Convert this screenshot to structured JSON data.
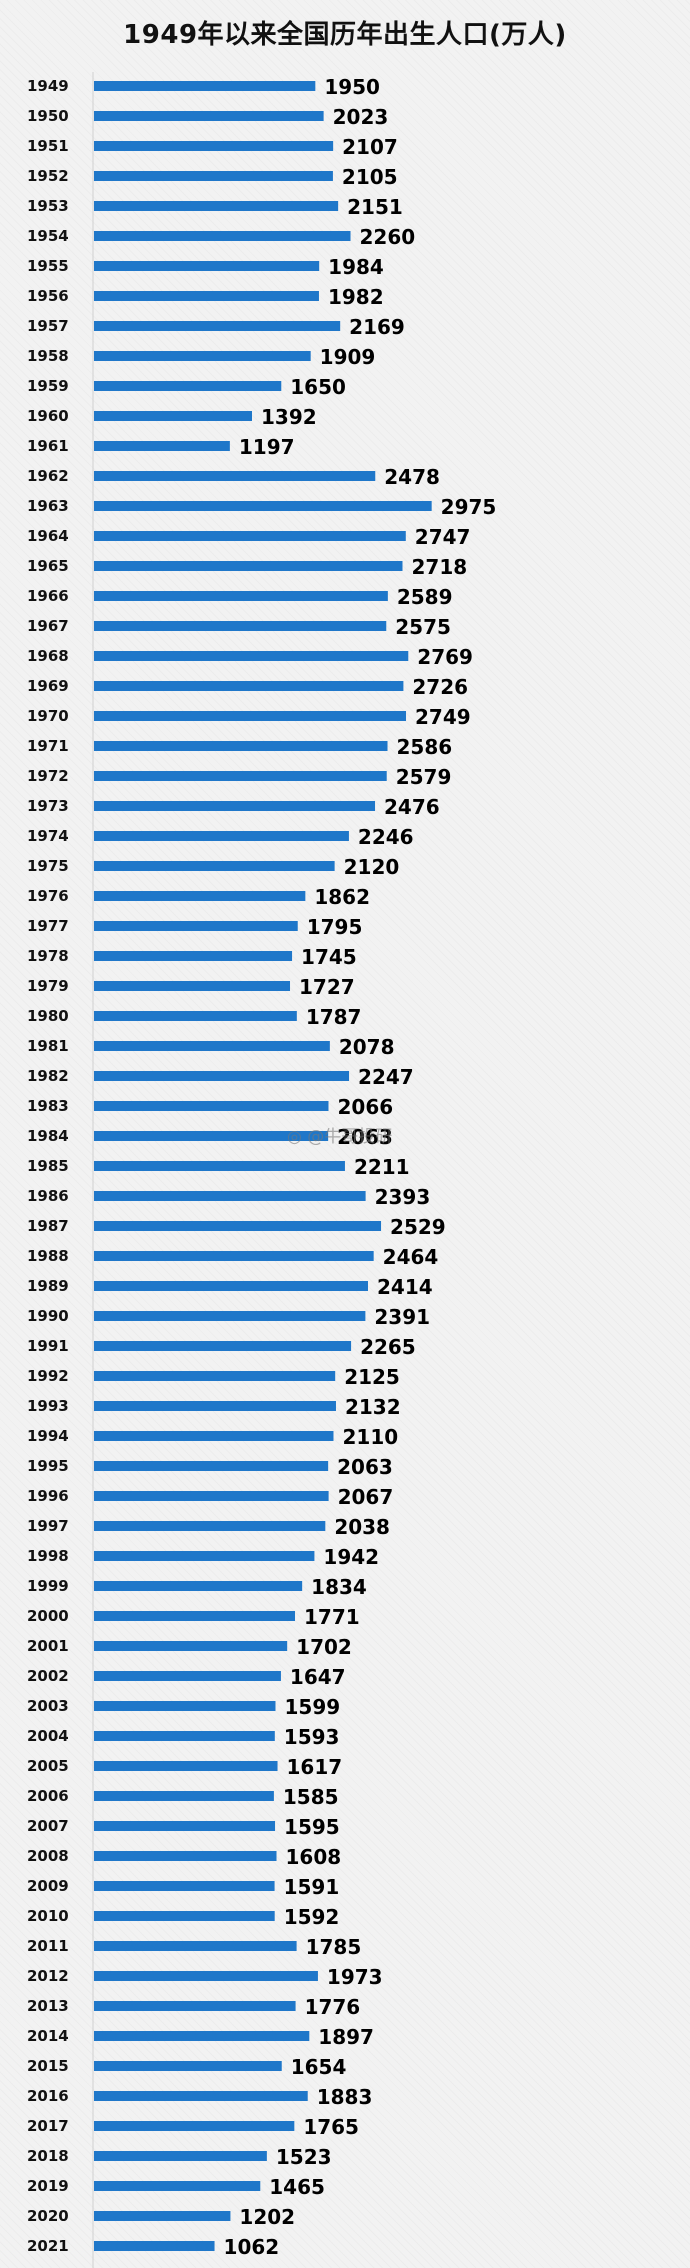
{
  "chart_data": {
    "type": "bar",
    "orientation": "horizontal",
    "title": "1949年以来全国历年出生人口(万人)",
    "bar_color": "#1f77c9",
    "categories": [
      "1949",
      "1950",
      "1951",
      "1952",
      "1953",
      "1954",
      "1955",
      "1956",
      "1957",
      "1958",
      "1959",
      "1960",
      "1961",
      "1962",
      "1963",
      "1964",
      "1965",
      "1966",
      "1967",
      "1968",
      "1969",
      "1970",
      "1971",
      "1972",
      "1973",
      "1974",
      "1975",
      "1976",
      "1977",
      "1978",
      "1979",
      "1980",
      "1981",
      "1982",
      "1983",
      "1984",
      "1985",
      "1986",
      "1987",
      "1988",
      "1989",
      "1990",
      "1991",
      "1992",
      "1993",
      "1994",
      "1995",
      "1996",
      "1997",
      "1998",
      "1999",
      "2000",
      "2001",
      "2002",
      "2003",
      "2004",
      "2005",
      "2006",
      "2007",
      "2008",
      "2009",
      "2010",
      "2011",
      "2012",
      "2013",
      "2014",
      "2015",
      "2016",
      "2017",
      "2018",
      "2019",
      "2020",
      "2021"
    ],
    "values": [
      1950,
      2023,
      2107,
      2105,
      2151,
      2260,
      1984,
      1982,
      2169,
      1909,
      1650,
      1392,
      1197,
      2478,
      2975,
      2747,
      2718,
      2589,
      2575,
      2769,
      2726,
      2749,
      2586,
      2579,
      2476,
      2246,
      2120,
      1862,
      1795,
      1745,
      1727,
      1787,
      2078,
      2247,
      2066,
      2063,
      2211,
      2393,
      2529,
      2464,
      2414,
      2391,
      2265,
      2125,
      2132,
      2110,
      2063,
      2067,
      2038,
      1942,
      1834,
      1771,
      1702,
      1647,
      1599,
      1593,
      1617,
      1585,
      1595,
      1608,
      1591,
      1592,
      1785,
      1973,
      1776,
      1897,
      1654,
      1883,
      1765,
      1523,
      1465,
      1202,
      1062
    ],
    "grid": false,
    "legend": "none"
  },
  "watermark": "@牛哥投研"
}
